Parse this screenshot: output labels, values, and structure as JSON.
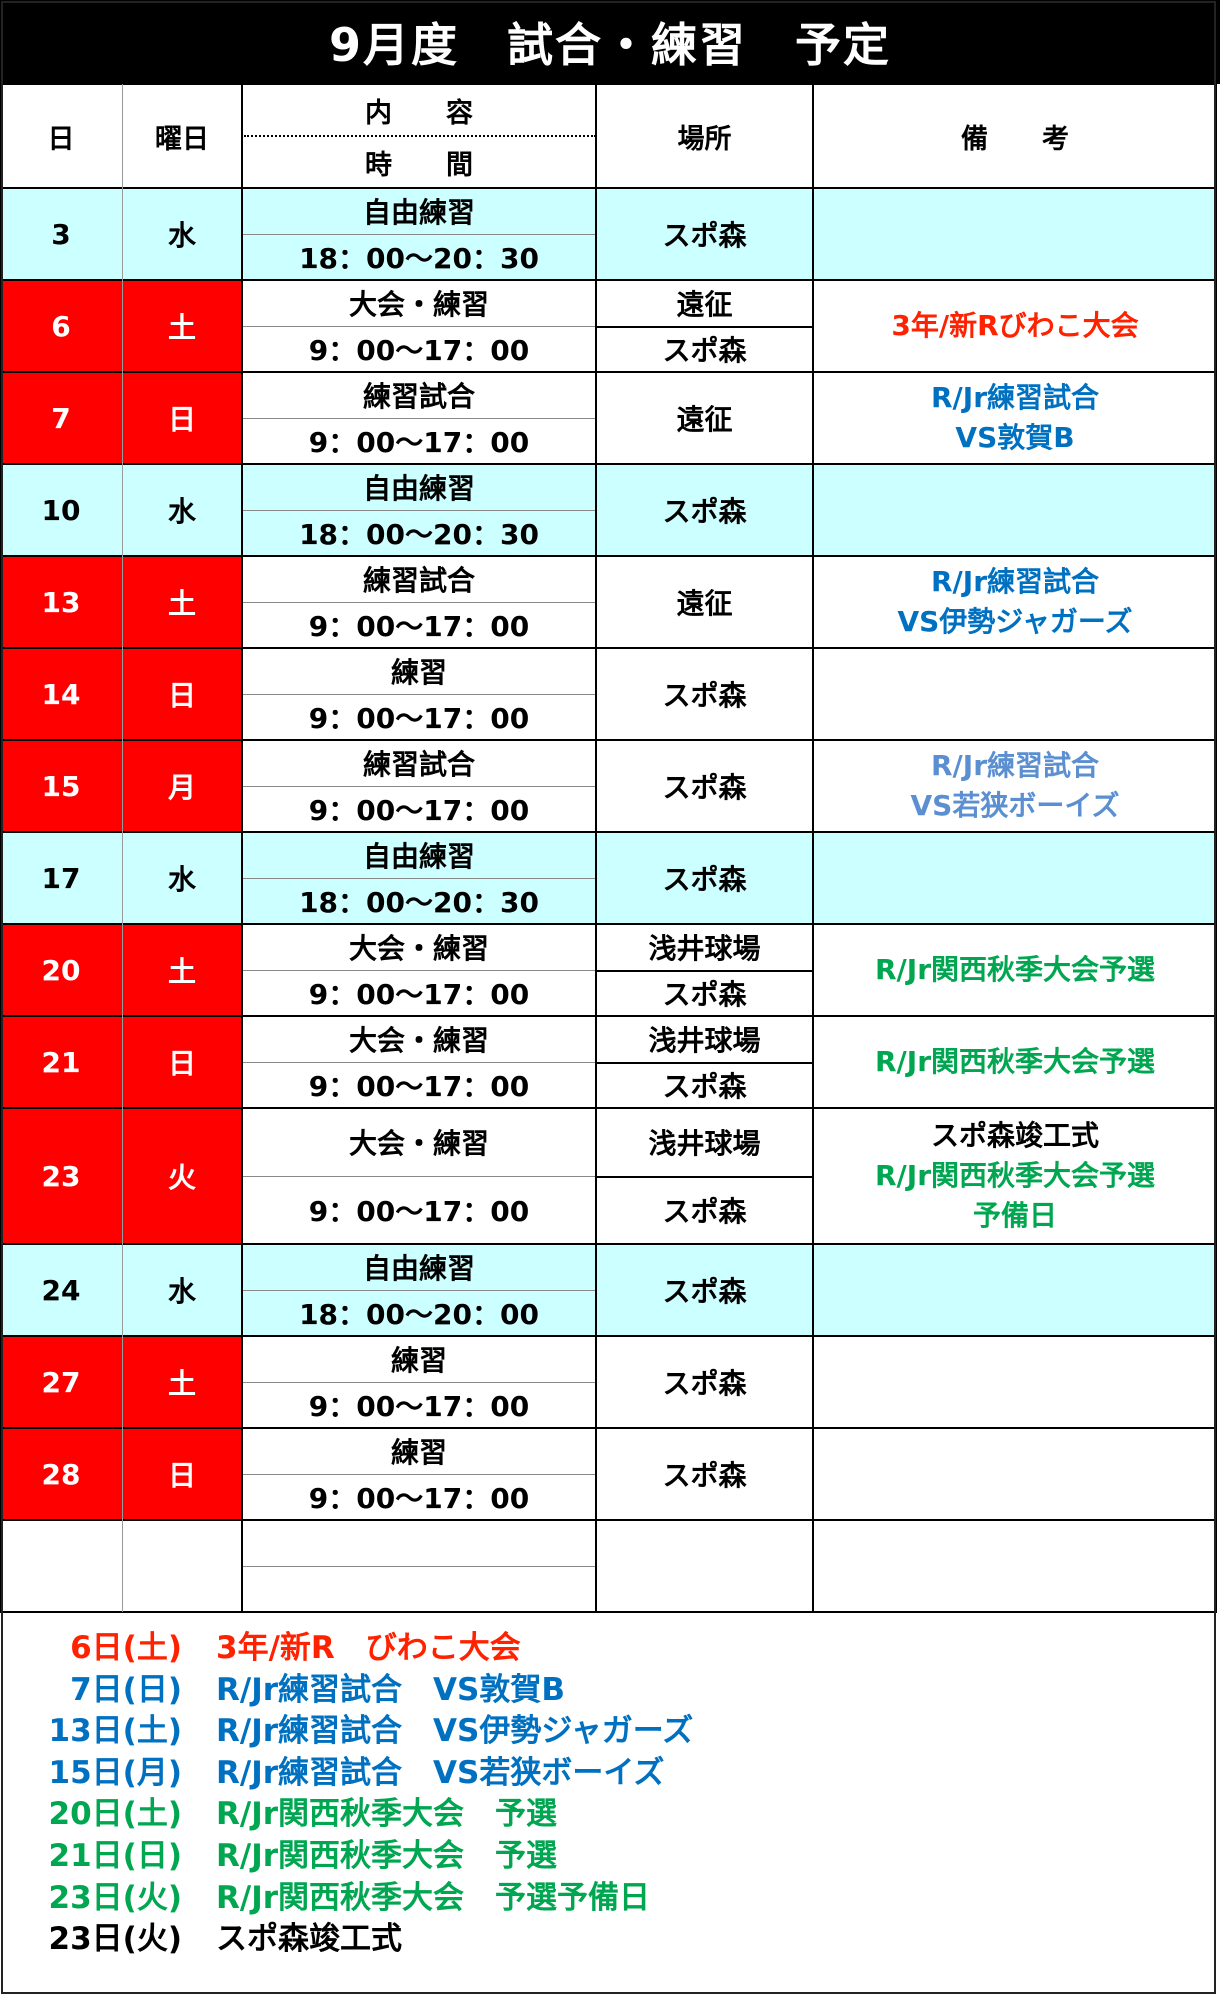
{
  "title": "9月度　試合・練習　予定",
  "colors": {
    "weekend": "#ff0000",
    "weekday": "#ccffff",
    "red_text": "#ff2200",
    "blue_text": "#0070c0",
    "light_blue_text": "#5b8fd0",
    "green_text": "#00a650",
    "black_text": "#000000"
  },
  "header": {
    "day": "日",
    "weekday": "曜日",
    "content": "内　　容",
    "time": "時　　間",
    "place": "場所",
    "remarks": "備　　考"
  },
  "rows": [
    {
      "day": "3",
      "weekday": "水",
      "bg": "#ccffff",
      "content": "自由練習",
      "time": "18：00～20：30",
      "places": [
        "スポ森"
      ],
      "remarks": []
    },
    {
      "day": "6",
      "weekday": "土",
      "bg": "#ff0000",
      "content": "大会・練習",
      "time": "9：00～17：00",
      "places": [
        "遠征",
        "スポ森"
      ],
      "remarks": [
        {
          "text": "3年/新Rびわこ大会",
          "color": "#ff2200"
        }
      ]
    },
    {
      "day": "7",
      "weekday": "日",
      "bg": "#ff0000",
      "content": "練習試合",
      "time": "9：00～17：00",
      "places": [
        "遠征"
      ],
      "remarks": [
        {
          "text": "R/Jr練習試合",
          "color": "#0070c0"
        },
        {
          "text": "VS敦賀B",
          "color": "#0070c0"
        }
      ]
    },
    {
      "day": "10",
      "weekday": "水",
      "bg": "#ccffff",
      "content": "自由練習",
      "time": "18：00～20：30",
      "places": [
        "スポ森"
      ],
      "remarks": []
    },
    {
      "day": "13",
      "weekday": "土",
      "bg": "#ff0000",
      "content": "練習試合",
      "time": "9：00～17：00",
      "places": [
        "遠征"
      ],
      "remarks": [
        {
          "text": "R/Jr練習試合",
          "color": "#0070c0"
        },
        {
          "text": "VS伊勢ジャガーズ",
          "color": "#0070c0"
        }
      ]
    },
    {
      "day": "14",
      "weekday": "日",
      "bg": "#ff0000",
      "content": "練習",
      "time": "9：00～17：00",
      "places": [
        "スポ森"
      ],
      "remarks": []
    },
    {
      "day": "15",
      "weekday": "月",
      "bg": "#ff0000",
      "content": "練習試合",
      "time": "9：00～17：00",
      "places": [
        "スポ森"
      ],
      "remarks": [
        {
          "text": "R/Jr練習試合",
          "color": "#5b8fd0"
        },
        {
          "text": "VS若狭ボーイズ",
          "color": "#5b8fd0"
        }
      ]
    },
    {
      "day": "17",
      "weekday": "水",
      "bg": "#ccffff",
      "content": "自由練習",
      "time": "18：00～20：30",
      "places": [
        "スポ森"
      ],
      "remarks": []
    },
    {
      "day": "20",
      "weekday": "土",
      "bg": "#ff0000",
      "content": "大会・練習",
      "time": "9：00～17：00",
      "places": [
        "浅井球場",
        "スポ森"
      ],
      "remarks": [
        {
          "text": "R/Jr関西秋季大会予選",
          "color": "#00a650"
        }
      ]
    },
    {
      "day": "21",
      "weekday": "日",
      "bg": "#ff0000",
      "content": "大会・練習",
      "time": "9：00～17：00",
      "places": [
        "浅井球場",
        "スポ森"
      ],
      "remarks": [
        {
          "text": "R/Jr関西秋季大会予選",
          "color": "#00a650"
        }
      ]
    },
    {
      "day": "23",
      "weekday": "火",
      "bg": "#ff0000",
      "content": "大会・練習",
      "time": "9：00～17：00",
      "places": [
        "浅井球場",
        "スポ森"
      ],
      "remarks": [
        {
          "text": "スポ森竣工式",
          "color": "#000000"
        },
        {
          "text": "R/Jr関西秋季大会予選",
          "color": "#00a650"
        },
        {
          "text": "予備日",
          "color": "#00a650"
        }
      ]
    },
    {
      "day": "24",
      "weekday": "水",
      "bg": "#ccffff",
      "content": "自由練習",
      "time": "18：00～20：00",
      "places": [
        "スポ森"
      ],
      "remarks": []
    },
    {
      "day": "27",
      "weekday": "土",
      "bg": "#ff0000",
      "content": "練習",
      "time": "9：00～17：00",
      "places": [
        "スポ森"
      ],
      "remarks": []
    },
    {
      "day": "28",
      "weekday": "日",
      "bg": "#ff0000",
      "content": "練習",
      "time": "9：00～17：00",
      "places": [
        "スポ森"
      ],
      "remarks": []
    },
    {
      "day": "",
      "weekday": "",
      "bg": "#ffffff",
      "content": "",
      "time": "",
      "places": [
        ""
      ],
      "remarks": []
    }
  ],
  "notes": [
    {
      "date": "6日(土)",
      "text": "3年/新R　びわこ大会",
      "color": "#ff2200"
    },
    {
      "date": "7日(日)",
      "text": "R/Jr練習試合　VS敦賀B",
      "color": "#0070c0"
    },
    {
      "date": "13日(土)",
      "text": "R/Jr練習試合　VS伊勢ジャガーズ",
      "color": "#0070c0"
    },
    {
      "date": "15日(月)",
      "text": "R/Jr練習試合　VS若狭ボーイズ",
      "color": "#0070c0"
    },
    {
      "date": "20日(土)",
      "text": "R/Jr関西秋季大会　予選",
      "color": "#00a650"
    },
    {
      "date": "21日(日)",
      "text": "R/Jr関西秋季大会　予選",
      "color": "#00a650"
    },
    {
      "date": "23日(火)",
      "text": "R/Jr関西秋季大会　予選予備日",
      "color": "#00a650"
    },
    {
      "date": "23日(火)",
      "text": "スポ森竣工式",
      "color": "#000000"
    }
  ]
}
